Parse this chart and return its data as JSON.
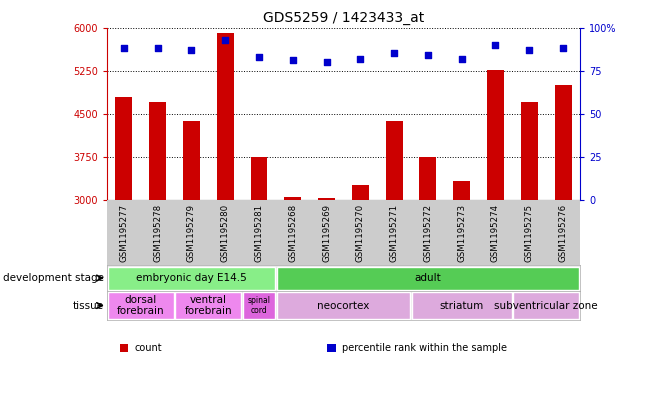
{
  "title": "GDS5259 / 1423433_at",
  "samples": [
    "GSM1195277",
    "GSM1195278",
    "GSM1195279",
    "GSM1195280",
    "GSM1195281",
    "GSM1195268",
    "GSM1195269",
    "GSM1195270",
    "GSM1195271",
    "GSM1195272",
    "GSM1195273",
    "GSM1195274",
    "GSM1195275",
    "GSM1195276"
  ],
  "counts": [
    4800,
    4700,
    4380,
    5900,
    3760,
    3060,
    3040,
    3260,
    4380,
    3760,
    3330,
    5260,
    4700,
    5000
  ],
  "percentiles": [
    88,
    88,
    87,
    93,
    83,
    81,
    80,
    82,
    85,
    84,
    82,
    90,
    87,
    88
  ],
  "ylim_left": [
    3000,
    6000
  ],
  "ylim_right": [
    0,
    100
  ],
  "yticks_left": [
    3000,
    3750,
    4500,
    5250,
    6000
  ],
  "yticks_right": [
    0,
    25,
    50,
    75,
    100
  ],
  "bar_color": "#cc0000",
  "dot_color": "#0000cc",
  "background_color": "#ffffff",
  "dev_stage_groups": [
    {
      "label": "embryonic day E14.5",
      "start": 0,
      "end": 5,
      "color": "#88ee88"
    },
    {
      "label": "adult",
      "start": 5,
      "end": 14,
      "color": "#55cc55"
    }
  ],
  "tissue_groups": [
    {
      "label": "dorsal\nforebrain",
      "start": 0,
      "end": 2,
      "color": "#ee88ee"
    },
    {
      "label": "ventral\nforebrain",
      "start": 2,
      "end": 4,
      "color": "#ee88ee"
    },
    {
      "label": "spinal\ncord",
      "start": 4,
      "end": 5,
      "color": "#dd66dd"
    },
    {
      "label": "neocortex",
      "start": 5,
      "end": 9,
      "color": "#ddaadd"
    },
    {
      "label": "striatum",
      "start": 9,
      "end": 12,
      "color": "#ddaadd"
    },
    {
      "label": "subventricular zone",
      "start": 12,
      "end": 14,
      "color": "#ddaadd"
    }
  ],
  "legend_items": [
    {
      "label": "count",
      "color": "#cc0000"
    },
    {
      "label": "percentile rank within the sample",
      "color": "#0000cc"
    }
  ],
  "xtick_bg": "#cccccc",
  "dev_stage_label": "development stage",
  "tissue_label": "tissue"
}
